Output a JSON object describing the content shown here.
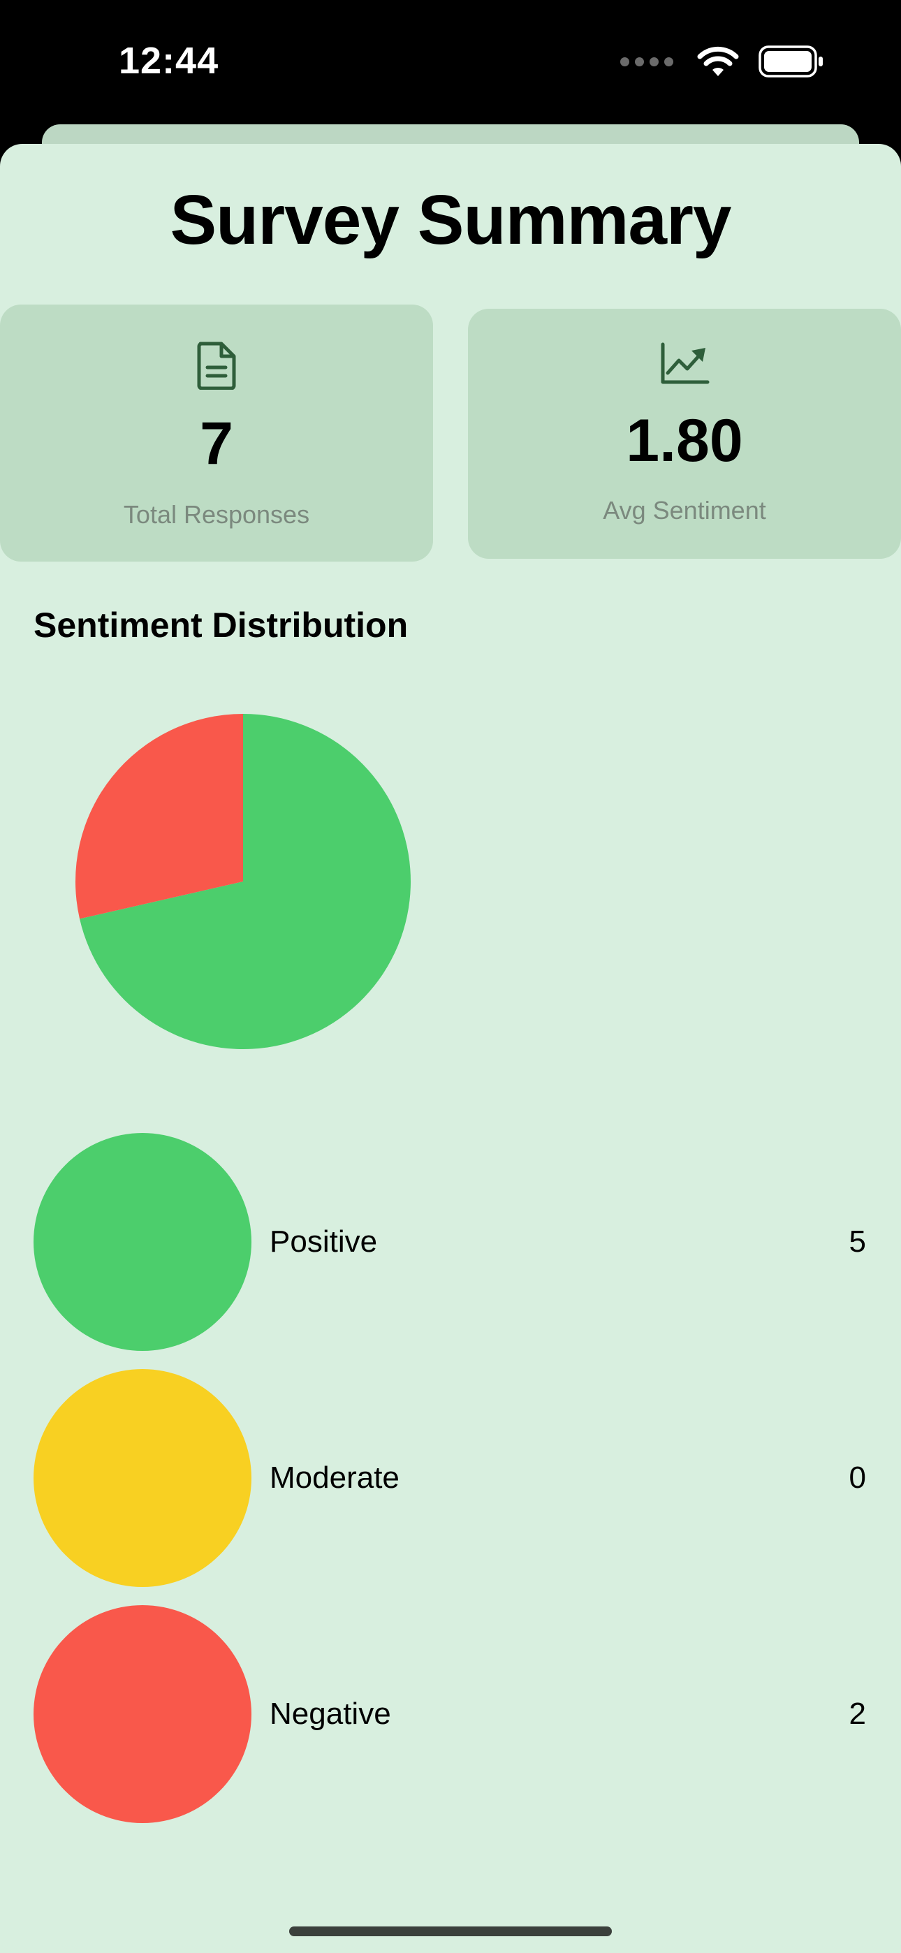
{
  "status_bar": {
    "time": "12:44"
  },
  "title": "Survey Summary",
  "stats": [
    {
      "icon": "document-icon",
      "value": "7",
      "label": "Total Responses"
    },
    {
      "icon": "trend-chart-icon",
      "value": "1.80",
      "label": "Avg Sentiment"
    }
  ],
  "section_title": "Sentiment Distribution",
  "colors": {
    "positive": "#4cce6c",
    "moderate": "#f8d022",
    "negative": "#f9584b",
    "background": "#d8efdf",
    "card": "#bddcc4"
  },
  "chart_data": {
    "type": "pie",
    "categories": [
      "Positive",
      "Moderate",
      "Negative"
    ],
    "values": [
      5,
      0,
      2
    ],
    "colors": [
      "#4cce6c",
      "#f8d022",
      "#f9584b"
    ]
  },
  "legend": [
    {
      "label": "Positive",
      "count": "5",
      "color": "#4cce6c"
    },
    {
      "label": "Moderate",
      "count": "0",
      "color": "#f8d022"
    },
    {
      "label": "Negative",
      "count": "2",
      "color": "#f9584b"
    }
  ]
}
